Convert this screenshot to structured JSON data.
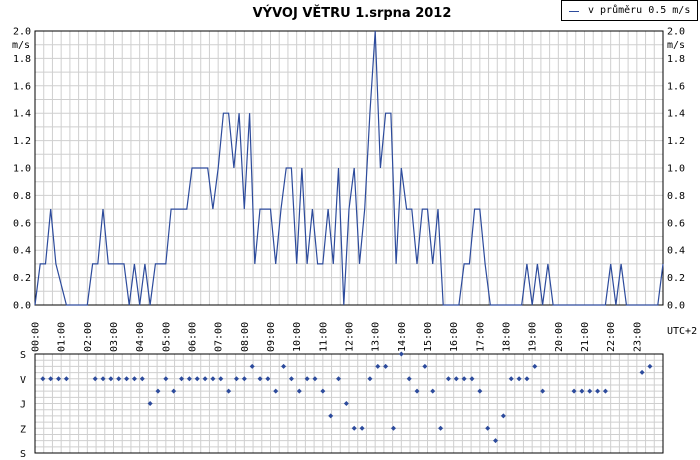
{
  "title": "VÝVOJ VĚTRU  1.srpna 2012",
  "colors": {
    "series": "#2d4b9c",
    "grid": "#cfcfcf",
    "axis": "#000000",
    "background": "#ffffff"
  },
  "chart_data": [
    {
      "type": "line",
      "title": "VÝVOJ VĚTRU  1.srpna 2012",
      "ylabel": "m/s",
      "xlabel": "UTC+2",
      "ylim": [
        0,
        2.0
      ],
      "xlim": [
        0,
        24
      ],
      "grid": true,
      "legend": "top-right",
      "x_ticks": [
        "00:00",
        "01:00",
        "02:00",
        "03:00",
        "04:00",
        "05:00",
        "06:00",
        "07:00",
        "08:00",
        "09:00",
        "10:00",
        "11:00",
        "12:00",
        "13:00",
        "14:00",
        "15:00",
        "16:00",
        "17:00",
        "18:00",
        "19:00",
        "20:00",
        "21:00",
        "22:00",
        "23:00"
      ],
      "y_ticks": [
        "0.0",
        "0.2",
        "0.4",
        "0.6",
        "0.8",
        "1.0",
        "1.2",
        "1.4",
        "1.6",
        "1.8",
        "2.0"
      ],
      "series": [
        {
          "name": "v průměru 0.5 m/s",
          "x": [
            0.0,
            0.2,
            0.4,
            0.6,
            0.8,
            1.2,
            1.4,
            1.8,
            2.0,
            2.2,
            2.4,
            2.6,
            2.8,
            3.0,
            3.2,
            3.4,
            3.6,
            3.8,
            4.0,
            4.2,
            4.4,
            4.6,
            4.8,
            5.0,
            5.2,
            5.4,
            5.6,
            5.8,
            6.0,
            6.2,
            6.4,
            6.6,
            6.8,
            7.0,
            7.2,
            7.4,
            7.6,
            7.8,
            8.0,
            8.2,
            8.4,
            8.6,
            8.8,
            9.0,
            9.2,
            9.4,
            9.6,
            9.8,
            10.0,
            10.2,
            10.4,
            10.6,
            10.8,
            11.0,
            11.2,
            11.4,
            11.6,
            11.8,
            12.0,
            12.2,
            12.4,
            12.6,
            12.8,
            13.0,
            13.2,
            13.4,
            13.6,
            13.8,
            14.0,
            14.2,
            14.4,
            14.6,
            14.8,
            15.0,
            15.2,
            15.4,
            15.6,
            15.8,
            16.0,
            16.2,
            16.4,
            16.6,
            16.8,
            17.0,
            17.2,
            17.4,
            17.6,
            17.8,
            18.0,
            18.2,
            18.4,
            18.6,
            18.8,
            19.0,
            19.2,
            19.4,
            19.6,
            19.8,
            20.0,
            20.2,
            20.4,
            20.6,
            20.8,
            21.0,
            21.2,
            21.4,
            21.6,
            21.8,
            22.0,
            22.2,
            22.4,
            22.6,
            22.8,
            23.0,
            23.2,
            23.4,
            23.6,
            23.8,
            24.0
          ],
          "y": [
            0.0,
            0.3,
            0.3,
            0.7,
            0.3,
            0.0,
            0.0,
            0.0,
            0.0,
            0.3,
            0.3,
            0.7,
            0.3,
            0.3,
            0.3,
            0.3,
            0.0,
            0.3,
            0.0,
            0.3,
            0.0,
            0.3,
            0.3,
            0.3,
            0.7,
            0.7,
            0.7,
            0.7,
            1.0,
            1.0,
            1.0,
            1.0,
            0.7,
            1.0,
            1.4,
            1.4,
            1.0,
            1.4,
            0.7,
            1.4,
            0.3,
            0.7,
            0.7,
            0.7,
            0.3,
            0.7,
            1.0,
            1.0,
            0.3,
            1.0,
            0.3,
            0.7,
            0.3,
            0.3,
            0.7,
            0.3,
            1.0,
            0.0,
            0.7,
            1.0,
            0.3,
            0.7,
            1.4,
            2.0,
            1.0,
            1.4,
            1.4,
            0.3,
            1.0,
            0.7,
            0.7,
            0.3,
            0.7,
            0.7,
            0.3,
            0.7,
            0.0,
            0.0,
            0.0,
            0.0,
            0.3,
            0.3,
            0.7,
            0.7,
            0.3,
            0.0,
            0.0,
            0.0,
            0.0,
            0.0,
            0.0,
            0.0,
            0.3,
            0.0,
            0.3,
            0.0,
            0.3,
            0.0,
            0.0,
            0.0,
            0.0,
            0.0,
            0.0,
            0.0,
            0.0,
            0.0,
            0.0,
            0.0,
            0.3,
            0.0,
            0.3,
            0.0,
            0.0,
            0.0,
            0.0,
            0.0,
            0.0,
            0.0,
            0.3
          ]
        }
      ]
    },
    {
      "type": "scatter",
      "title": "",
      "ylabel": "",
      "xlabel": "",
      "grid": true,
      "y_categories": [
        "S",
        "J",
        "Z",
        "S"
      ],
      "y_ticks": [
        "S",
        "V",
        "J",
        "Z",
        "S"
      ],
      "y_values_meaning": "direction in degrees: 0=S, 90=V, 180=J, 270=Z, 360=S",
      "series": [
        {
          "name": "",
          "x": [
            0.3,
            0.6,
            0.9,
            1.2,
            2.3,
            2.6,
            2.9,
            3.2,
            3.5,
            3.8,
            4.1,
            4.4,
            4.7,
            5.0,
            5.3,
            5.6,
            5.9,
            6.2,
            6.5,
            6.8,
            7.1,
            7.4,
            7.7,
            8.0,
            8.3,
            8.6,
            8.9,
            9.2,
            9.5,
            9.8,
            10.1,
            10.4,
            10.7,
            11.0,
            11.3,
            11.6,
            11.9,
            12.2,
            12.5,
            12.8,
            13.1,
            13.4,
            13.7,
            14.0,
            14.3,
            14.6,
            14.9,
            15.2,
            15.5,
            15.8,
            16.1,
            16.4,
            16.7,
            17.0,
            17.3,
            17.6,
            17.9,
            18.2,
            18.5,
            18.8,
            19.1,
            19.4,
            20.6,
            20.9,
            21.2,
            21.5,
            21.8,
            23.2,
            23.5
          ],
          "y": [
            90,
            90,
            90,
            90,
            90,
            90,
            90,
            90,
            90,
            90,
            90,
            180,
            135,
            90,
            135,
            90,
            90,
            90,
            90,
            90,
            90,
            135,
            90,
            90,
            45,
            90,
            90,
            135,
            45,
            90,
            135,
            90,
            90,
            135,
            225,
            90,
            180,
            270,
            270,
            90,
            45,
            45,
            270,
            0,
            90,
            135,
            45,
            135,
            270,
            90,
            90,
            90,
            90,
            135,
            270,
            315,
            225,
            90,
            90,
            90,
            45,
            135,
            135,
            135,
            135,
            135,
            135,
            67,
            45
          ]
        }
      ]
    }
  ]
}
